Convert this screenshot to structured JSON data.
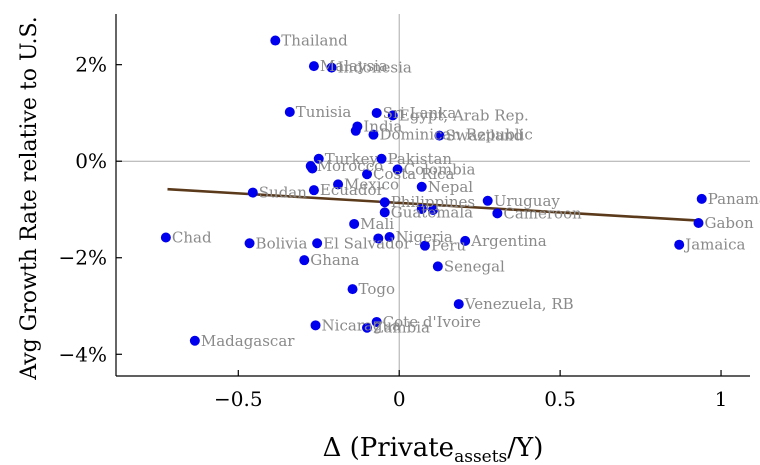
{
  "chart_data": {
    "type": "scatter",
    "title": "",
    "xlabel": "Δ (Private",
    "xlabel_sub": "assets",
    "xlabel_tail": "/Y)",
    "ylabel": "Avg Growth Rate relative to U.S.",
    "xlim": [
      -0.88,
      1.09
    ],
    "ylim": [
      -4.45,
      3.05
    ],
    "x_ticks": [
      -0.5,
      0,
      0.5,
      1
    ],
    "x_tick_labels": [
      "−0.5",
      "0",
      "0.5",
      "1"
    ],
    "y_ticks": [
      -4,
      -2,
      0,
      2
    ],
    "y_tick_labels": [
      "−4%",
      "−2%",
      "0%",
      "2%"
    ],
    "reference_lines": {
      "x": 0,
      "y": 0
    },
    "grid": false,
    "colors": {
      "points": "#0000ee",
      "fit_line": "#5a3a1a",
      "labels": "#8a8a8a",
      "ref_lines": "#aaaaaa"
    },
    "fit_line": {
      "x": [
        -0.72,
        0.93
      ],
      "y": [
        -0.58,
        -1.23
      ]
    },
    "points": [
      {
        "label": "Thailand",
        "x": -0.385,
        "y": 2.5
      },
      {
        "label": "Malaysia",
        "x": -0.265,
        "y": 1.97
      },
      {
        "label": "Indonesia",
        "x": -0.21,
        "y": 1.94
      },
      {
        "label": "Tunisia",
        "x": -0.34,
        "y": 1.02
      },
      {
        "label": "Sri Lanka",
        "x": -0.07,
        "y": 1.0
      },
      {
        "label": "Egypt, Arab Rep.",
        "x": -0.02,
        "y": 0.95
      },
      {
        "label": "Swaziland",
        "x": 0.125,
        "y": 0.53
      },
      {
        "label": "India",
        "x": -0.13,
        "y": 0.72
      },
      {
        "label": "Dominican Republic",
        "x": -0.08,
        "y": 0.55
      },
      {
        "label": "",
        "x": -0.135,
        "y": 0.63
      },
      {
        "label": "Turkey",
        "x": -0.25,
        "y": 0.05
      },
      {
        "label": "Pakistan",
        "x": -0.055,
        "y": 0.05
      },
      {
        "label": "Morocco",
        "x": -0.275,
        "y": -0.1
      },
      {
        "label": "",
        "x": -0.27,
        "y": -0.15
      },
      {
        "label": "Colombia",
        "x": -0.005,
        "y": -0.17
      },
      {
        "label": "Costa Rica",
        "x": -0.1,
        "y": -0.27
      },
      {
        "label": "Mexico",
        "x": -0.19,
        "y": -0.48
      },
      {
        "label": "Nepal",
        "x": 0.07,
        "y": -0.53
      },
      {
        "label": "Sudan",
        "x": -0.455,
        "y": -0.65
      },
      {
        "label": "Ecuador",
        "x": -0.265,
        "y": -0.6
      },
      {
        "label": "Philippines",
        "x": -0.045,
        "y": -0.85
      },
      {
        "label": "Uruguay",
        "x": 0.275,
        "y": -0.82
      },
      {
        "label": "Guatemala",
        "x": -0.045,
        "y": -1.06
      },
      {
        "label": "",
        "x": 0.07,
        "y": -0.99
      },
      {
        "label": "",
        "x": 0.105,
        "y": -1.01
      },
      {
        "label": "Cameroon",
        "x": 0.305,
        "y": -1.08
      },
      {
        "label": "Panama",
        "x": 0.94,
        "y": -0.78
      },
      {
        "label": "Gabon",
        "x": 0.93,
        "y": -1.28
      },
      {
        "label": "Jamaica",
        "x": 0.87,
        "y": -1.73
      },
      {
        "label": "Mali",
        "x": -0.14,
        "y": -1.3
      },
      {
        "label": "Chad",
        "x": -0.725,
        "y": -1.58
      },
      {
        "label": "Bolivia",
        "x": -0.465,
        "y": -1.7
      },
      {
        "label": "El Salvador",
        "x": -0.255,
        "y": -1.7
      },
      {
        "label": "Nigeria",
        "x": -0.03,
        "y": -1.57
      },
      {
        "label": "",
        "x": -0.065,
        "y": -1.6
      },
      {
        "label": "Peru",
        "x": 0.08,
        "y": -1.75
      },
      {
        "label": "Argentina",
        "x": 0.205,
        "y": -1.65
      },
      {
        "label": "Ghana",
        "x": -0.295,
        "y": -2.05
      },
      {
        "label": "Senegal",
        "x": 0.12,
        "y": -2.18
      },
      {
        "label": "Togo",
        "x": -0.145,
        "y": -2.65
      },
      {
        "label": "Venezuela, RB",
        "x": 0.185,
        "y": -2.96
      },
      {
        "label": "Nicaragua",
        "x": -0.26,
        "y": -3.4
      },
      {
        "label": "Cote d'Ivoire",
        "x": -0.07,
        "y": -3.33
      },
      {
        "label": "Zambia",
        "x": -0.1,
        "y": -3.45
      },
      {
        "label": "Madagascar",
        "x": -0.635,
        "y": -3.72
      }
    ]
  }
}
